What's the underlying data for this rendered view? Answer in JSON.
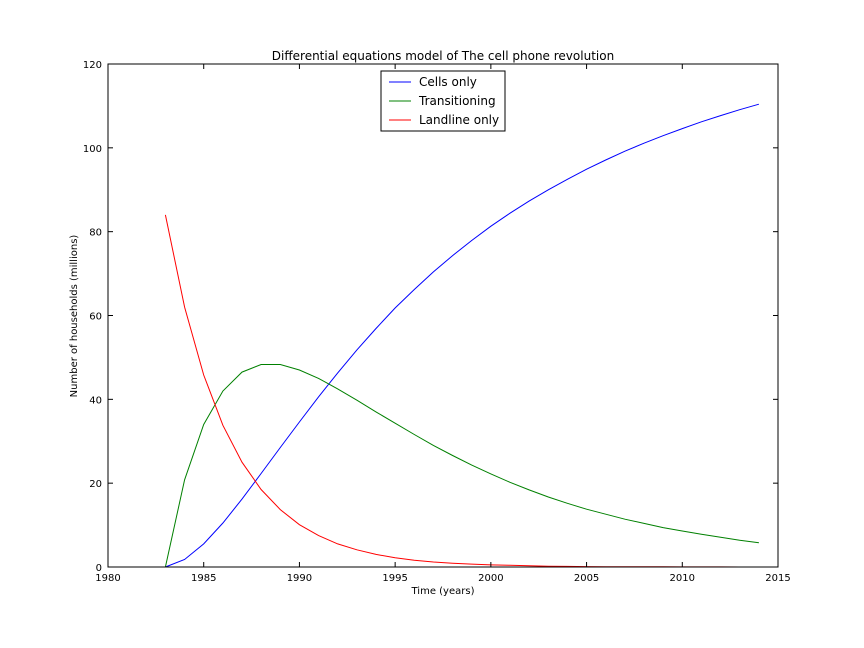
{
  "chart_data": {
    "type": "line",
    "title": "Differential equations model of The cell phone revolution",
    "xlabel": "Time (years)",
    "ylabel": "Number of households (millions)",
    "xlim": [
      1980,
      2015
    ],
    "ylim": [
      0,
      120
    ],
    "xticks": [
      1980,
      1985,
      1990,
      1995,
      2000,
      2005,
      2010,
      2015
    ],
    "yticks": [
      0,
      20,
      40,
      60,
      80,
      100,
      120
    ],
    "grid": false,
    "legend_position": "upper center",
    "x": [
      1983,
      1984,
      1985,
      1986,
      1987,
      1988,
      1989,
      1990,
      1991,
      1992,
      1993,
      1994,
      1995,
      1996,
      1997,
      1998,
      1999,
      2000,
      2001,
      2002,
      2003,
      2004,
      2005,
      2006,
      2007,
      2008,
      2009,
      2010,
      2011,
      2012,
      2013,
      2014
    ],
    "series": [
      {
        "name": "Cells only",
        "color": "#0000ff",
        "values": [
          0,
          1.8,
          5.5,
          10.5,
          16.2,
          22.3,
          28.5,
          34.6,
          40.6,
          46.3,
          51.8,
          56.9,
          61.8,
          66.2,
          70.4,
          74.3,
          77.9,
          81.3,
          84.4,
          87.3,
          90.0,
          92.5,
          94.9,
          97.1,
          99.2,
          101.1,
          102.9,
          104.6,
          106.2,
          107.7,
          109.1,
          110.4
        ]
      },
      {
        "name": "Transitioning",
        "color": "#008000",
        "values": [
          0,
          20.8,
          34.0,
          42.0,
          46.5,
          48.3,
          48.3,
          47.0,
          45.0,
          42.5,
          39.8,
          37.0,
          34.3,
          31.6,
          29.0,
          26.6,
          24.3,
          22.2,
          20.2,
          18.4,
          16.7,
          15.2,
          13.8,
          12.6,
          11.4,
          10.4,
          9.4,
          8.6,
          7.8,
          7.1,
          6.4,
          5.8
        ]
      },
      {
        "name": "Landline only",
        "color": "#ff0000",
        "values": [
          84,
          62.0,
          45.8,
          33.8,
          25.0,
          18.5,
          13.7,
          10.1,
          7.5,
          5.5,
          4.1,
          3.0,
          2.2,
          1.6,
          1.2,
          0.9,
          0.7,
          0.5,
          0.4,
          0.3,
          0.2,
          0.15,
          0.1,
          0.08,
          0.06,
          0.05,
          0.04,
          0.03,
          0.02,
          0.02,
          0.01,
          0.01
        ]
      }
    ]
  }
}
